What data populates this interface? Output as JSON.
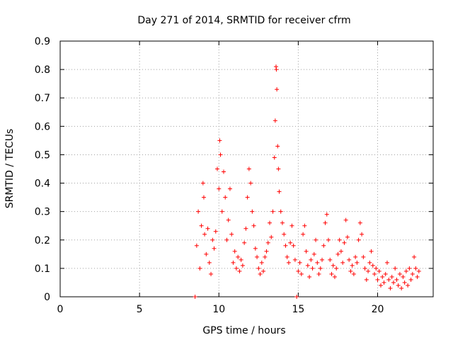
{
  "chart_data": {
    "type": "scatter",
    "title": "Day 271 of 2014, SRMTID for receiver cfrm",
    "xlabel": "GPS time / hours",
    "ylabel": "SRMTID / TECUs",
    "xlim": [
      0,
      23.5
    ],
    "ylim": [
      0,
      0.9
    ],
    "x_ticks": [
      0,
      5,
      10,
      15,
      20
    ],
    "x_tick_labels": [
      "0",
      "5",
      "10",
      "15",
      "20"
    ],
    "y_ticks": [
      0,
      0.1,
      0.2,
      0.3,
      0.4,
      0.5,
      0.6,
      0.7,
      0.8,
      0.9
    ],
    "y_tick_labels": [
      "0",
      "0.1",
      "0.2",
      "0.3",
      "0.4",
      "0.5",
      "0.6",
      "0.7",
      "0.8",
      "0.9"
    ],
    "grid": true,
    "marker": "+",
    "series": [
      {
        "name": "SRMTID",
        "color": "#ff0000",
        "points": [
          [
            8.5,
            0.0
          ],
          [
            14.9,
            0.0
          ],
          [
            8.6,
            0.18
          ],
          [
            8.7,
            0.3
          ],
          [
            8.8,
            0.1
          ],
          [
            8.9,
            0.25
          ],
          [
            9.0,
            0.4
          ],
          [
            9.05,
            0.35
          ],
          [
            9.1,
            0.22
          ],
          [
            9.2,
            0.15
          ],
          [
            9.3,
            0.24
          ],
          [
            9.4,
            0.12
          ],
          [
            9.5,
            0.08
          ],
          [
            9.6,
            0.2
          ],
          [
            9.7,
            0.17
          ],
          [
            9.8,
            0.23
          ],
          [
            9.9,
            0.45
          ],
          [
            10.0,
            0.38
          ],
          [
            10.05,
            0.55
          ],
          [
            10.1,
            0.5
          ],
          [
            10.2,
            0.3
          ],
          [
            10.3,
            0.44
          ],
          [
            10.4,
            0.35
          ],
          [
            10.5,
            0.2
          ],
          [
            10.6,
            0.27
          ],
          [
            10.7,
            0.38
          ],
          [
            10.8,
            0.22
          ],
          [
            10.9,
            0.12
          ],
          [
            11.0,
            0.16
          ],
          [
            11.1,
            0.1
          ],
          [
            11.2,
            0.14
          ],
          [
            11.3,
            0.09
          ],
          [
            11.4,
            0.13
          ],
          [
            11.5,
            0.11
          ],
          [
            11.6,
            0.19
          ],
          [
            11.7,
            0.24
          ],
          [
            11.8,
            0.35
          ],
          [
            11.9,
            0.45
          ],
          [
            12.0,
            0.4
          ],
          [
            12.1,
            0.3
          ],
          [
            12.2,
            0.25
          ],
          [
            12.3,
            0.17
          ],
          [
            12.4,
            0.14
          ],
          [
            12.5,
            0.1
          ],
          [
            12.6,
            0.08
          ],
          [
            12.7,
            0.12
          ],
          [
            12.8,
            0.09
          ],
          [
            12.9,
            0.14
          ],
          [
            13.0,
            0.16
          ],
          [
            13.1,
            0.19
          ],
          [
            13.2,
            0.26
          ],
          [
            13.3,
            0.21
          ],
          [
            13.4,
            0.3
          ],
          [
            13.5,
            0.49
          ],
          [
            13.55,
            0.62
          ],
          [
            13.6,
            0.81
          ],
          [
            13.62,
            0.8
          ],
          [
            13.65,
            0.73
          ],
          [
            13.7,
            0.53
          ],
          [
            13.75,
            0.45
          ],
          [
            13.8,
            0.37
          ],
          [
            13.9,
            0.3
          ],
          [
            14.0,
            0.26
          ],
          [
            14.1,
            0.22
          ],
          [
            14.2,
            0.18
          ],
          [
            14.3,
            0.14
          ],
          [
            14.4,
            0.12
          ],
          [
            14.5,
            0.19
          ],
          [
            14.6,
            0.25
          ],
          [
            14.7,
            0.18
          ],
          [
            14.8,
            0.13
          ],
          [
            15.0,
            0.09
          ],
          [
            15.1,
            0.12
          ],
          [
            15.2,
            0.08
          ],
          [
            15.3,
            0.22
          ],
          [
            15.4,
            0.25
          ],
          [
            15.5,
            0.16
          ],
          [
            15.6,
            0.11
          ],
          [
            15.7,
            0.07
          ],
          [
            15.8,
            0.13
          ],
          [
            15.9,
            0.1
          ],
          [
            16.0,
            0.15
          ],
          [
            16.1,
            0.2
          ],
          [
            16.2,
            0.12
          ],
          [
            16.3,
            0.08
          ],
          [
            16.4,
            0.1
          ],
          [
            16.5,
            0.13
          ],
          [
            16.6,
            0.18
          ],
          [
            16.7,
            0.26
          ],
          [
            16.8,
            0.29
          ],
          [
            16.9,
            0.2
          ],
          [
            17.0,
            0.13
          ],
          [
            17.1,
            0.08
          ],
          [
            17.2,
            0.11
          ],
          [
            17.3,
            0.07
          ],
          [
            17.4,
            0.1
          ],
          [
            17.5,
            0.15
          ],
          [
            17.6,
            0.2
          ],
          [
            17.7,
            0.16
          ],
          [
            17.8,
            0.12
          ],
          [
            17.9,
            0.19
          ],
          [
            18.0,
            0.27
          ],
          [
            18.1,
            0.21
          ],
          [
            18.2,
            0.13
          ],
          [
            18.3,
            0.09
          ],
          [
            18.4,
            0.11
          ],
          [
            18.5,
            0.08
          ],
          [
            18.6,
            0.14
          ],
          [
            18.7,
            0.12
          ],
          [
            18.8,
            0.2
          ],
          [
            18.9,
            0.26
          ],
          [
            19.0,
            0.22
          ],
          [
            19.1,
            0.14
          ],
          [
            19.2,
            0.1
          ],
          [
            19.3,
            0.06
          ],
          [
            19.4,
            0.09
          ],
          [
            19.5,
            0.12
          ],
          [
            19.6,
            0.16
          ],
          [
            19.7,
            0.11
          ],
          [
            19.8,
            0.08
          ],
          [
            19.9,
            0.1
          ],
          [
            20.0,
            0.06
          ],
          [
            20.1,
            0.09
          ],
          [
            20.2,
            0.04
          ],
          [
            20.3,
            0.07
          ],
          [
            20.4,
            0.05
          ],
          [
            20.5,
            0.08
          ],
          [
            20.6,
            0.12
          ],
          [
            20.7,
            0.06
          ],
          [
            20.8,
            0.03
          ],
          [
            20.9,
            0.07
          ],
          [
            21.0,
            0.05
          ],
          [
            21.1,
            0.1
          ],
          [
            21.2,
            0.06
          ],
          [
            21.3,
            0.04
          ],
          [
            21.4,
            0.08
          ],
          [
            21.5,
            0.03
          ],
          [
            21.6,
            0.07
          ],
          [
            21.7,
            0.05
          ],
          [
            21.8,
            0.09
          ],
          [
            21.9,
            0.04
          ],
          [
            22.0,
            0.1
          ],
          [
            22.1,
            0.06
          ],
          [
            22.2,
            0.08
          ],
          [
            22.3,
            0.14
          ],
          [
            22.4,
            0.1
          ],
          [
            22.5,
            0.07
          ],
          [
            22.6,
            0.09
          ]
        ]
      }
    ]
  }
}
